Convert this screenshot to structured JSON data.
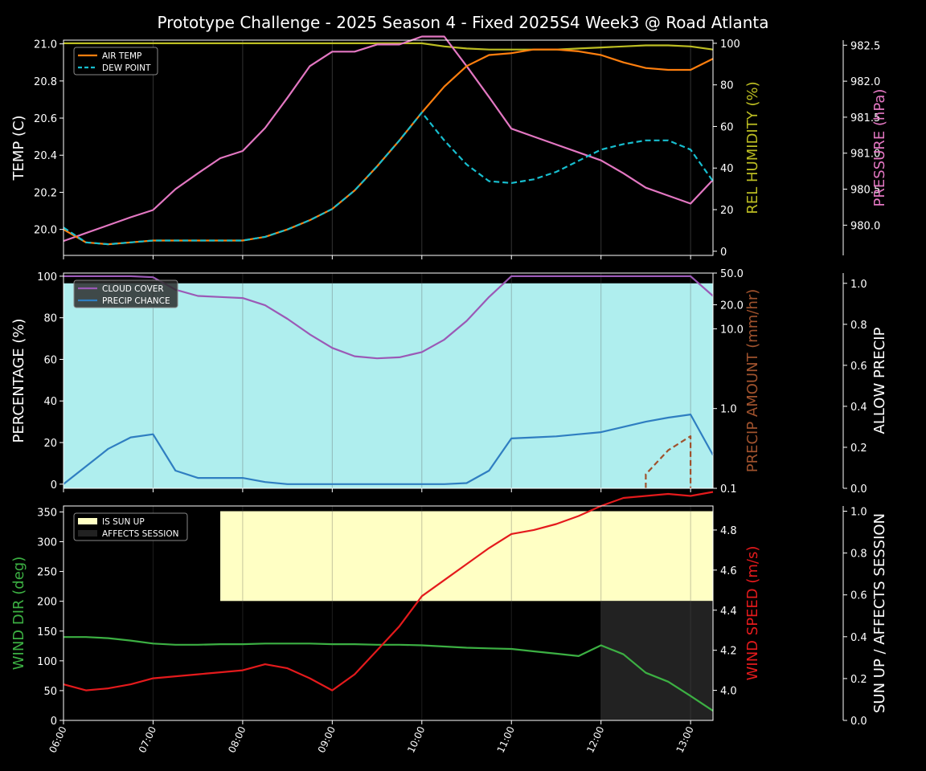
{
  "title": "Prototype Challenge  - 2025 Season 4 - Fixed 2025S4 Week3 @ Road Atlanta",
  "colors": {
    "air_temp": "#ff7f0e",
    "dew_point": "#17becf",
    "humidity": "#bcbd22",
    "pressure": "#e377c2",
    "cloud": "#9b59b6",
    "precip_chance": "#2f7ec1",
    "precip_amount": "#a0522d",
    "allow_precip_fill": "#afeeee",
    "wind_dir": "#3cb043",
    "wind_speed": "#e41a1c",
    "sun_up_fill": "#ffffc4",
    "affects_fill": "#222222"
  },
  "x_ticks": [
    "06:00",
    "07:00",
    "08:00",
    "09:00",
    "10:00",
    "11:00",
    "12:00",
    "13:00"
  ],
  "chart_data": [
    {
      "type": "line",
      "x_hours": [
        6.0,
        6.25,
        6.5,
        6.75,
        7.0,
        7.25,
        7.5,
        7.75,
        8.0,
        8.25,
        8.5,
        8.75,
        9.0,
        9.25,
        9.5,
        9.75,
        10.0,
        10.25,
        10.5,
        10.75,
        11.0,
        11.25,
        11.5,
        11.75,
        12.0,
        12.25,
        12.5,
        12.75,
        13.0,
        13.25
      ],
      "xlim": [
        6.0,
        13.25
      ],
      "ylabel": "TEMP (C)",
      "ylim": [
        19.86,
        21.02
      ],
      "yticks": [
        "20.0",
        "20.2",
        "20.4",
        "20.6",
        "20.8",
        "21.0"
      ],
      "y2label": "REL HUMIDITY (%)",
      "y2lim": [
        -2,
        101.5
      ],
      "y2ticks": [
        "0",
        "20",
        "40",
        "60",
        "80",
        "100"
      ],
      "y3label": "PRESSURE (hPa)",
      "y3lim": [
        979.58,
        982.57
      ],
      "y3ticks": [
        "980.0",
        "980.5",
        "981.0",
        "981.5",
        "982.0",
        "982.5"
      ],
      "legend": [
        "AIR TEMP",
        "DEW POINT"
      ],
      "series": [
        {
          "name": "AIR TEMP",
          "axis": "left",
          "values": [
            20.0,
            19.93,
            19.92,
            19.93,
            19.94,
            19.94,
            19.94,
            19.94,
            19.94,
            19.96,
            20.0,
            20.05,
            20.11,
            20.21,
            20.34,
            20.48,
            20.63,
            20.77,
            20.88,
            20.94,
            20.95,
            20.97,
            20.97,
            20.96,
            20.94,
            20.9,
            20.87,
            20.86,
            20.86,
            20.92
          ]
        },
        {
          "name": "DEW POINT",
          "axis": "left",
          "values": [
            20.01,
            19.93,
            19.92,
            19.93,
            19.94,
            19.94,
            19.94,
            19.94,
            19.94,
            19.96,
            20.0,
            20.05,
            20.11,
            20.21,
            20.34,
            20.48,
            20.63,
            20.48,
            20.35,
            20.26,
            20.25,
            20.27,
            20.31,
            20.37,
            20.43,
            20.46,
            20.48,
            20.48,
            20.43,
            20.26
          ]
        },
        {
          "name": "REL HUMIDITY",
          "axis": "right",
          "values": [
            100,
            100,
            100,
            100,
            100,
            100,
            100,
            100,
            100,
            100,
            100,
            100,
            100,
            100,
            100,
            100,
            100,
            98.5,
            97.5,
            97,
            97,
            97,
            97,
            97.5,
            98,
            98.5,
            99,
            99,
            98.5,
            97
          ]
        },
        {
          "name": "PRESSURE",
          "axis": "far-right",
          "values": [
            979.78,
            979.89,
            980.0,
            980.11,
            980.21,
            980.5,
            980.72,
            980.93,
            981.03,
            981.35,
            981.77,
            982.21,
            982.41,
            982.41,
            982.51,
            982.51,
            982.62,
            982.62,
            982.21,
            981.78,
            981.34,
            981.23,
            981.12,
            981.01,
            980.9,
            980.72,
            980.52,
            980.41,
            980.3,
            980.63
          ]
        }
      ]
    },
    {
      "type": "line",
      "x_hours": [
        6.0,
        6.25,
        6.5,
        6.75,
        7.0,
        7.25,
        7.5,
        7.75,
        8.0,
        8.25,
        8.5,
        8.75,
        9.0,
        9.25,
        9.5,
        9.75,
        10.0,
        10.25,
        10.5,
        10.75,
        11.0,
        11.25,
        11.5,
        11.75,
        12.0,
        12.25,
        12.5,
        12.75,
        13.0,
        13.25
      ],
      "xlim": [
        6.0,
        13.25
      ],
      "ylabel": "PERCENTAGE (%)",
      "ylim": [
        -2,
        101.5
      ],
      "yticks": [
        "0",
        "20",
        "40",
        "60",
        "80",
        "100"
      ],
      "y2label": "PRECIP AMOUNT (mm/hr)",
      "y2scale": "log",
      "y2lim": [
        0.1,
        50
      ],
      "y2ticks": [
        "0.1",
        "1.0",
        "10.0",
        "20.0",
        "50.0"
      ],
      "y3label": "ALLOW PRECIP",
      "y3lim": [
        0,
        1.05
      ],
      "y3ticks": [
        "0.0",
        "0.2",
        "0.4",
        "0.6",
        "0.8",
        "1.0"
      ],
      "legend": [
        "CLOUD COVER",
        "PRECIP CHANCE"
      ],
      "series": [
        {
          "name": "CLOUD COVER",
          "axis": "left",
          "values": [
            100,
            100,
            100,
            100,
            99.5,
            93.5,
            90.5,
            90,
            89.5,
            86,
            79.5,
            72,
            65.5,
            61.5,
            60.5,
            61,
            63.5,
            69.5,
            78.5,
            90,
            100,
            100,
            100,
            100,
            100,
            100,
            100,
            100,
            100,
            90.5
          ]
        },
        {
          "name": "PRECIP CHANCE",
          "axis": "left",
          "values": [
            0,
            8.5,
            17,
            22.5,
            24,
            6.5,
            3,
            3,
            3,
            1,
            0,
            0,
            0,
            0,
            0,
            0,
            0,
            0,
            0.5,
            6.5,
            22,
            22.5,
            23,
            24,
            25,
            27.5,
            30,
            32,
            33.5,
            14
          ]
        },
        {
          "name": "PRECIP AMOUNT",
          "axis": "right",
          "x_hours": [
            12.5,
            12.5,
            12.75,
            13.0,
            13.0
          ],
          "values": [
            0.1,
            0.15,
            0.3,
            0.45,
            0.1
          ]
        },
        {
          "name": "ALLOW PRECIP",
          "axis": "far-right",
          "x_hours": [
            6.0,
            13.25
          ],
          "values": [
            1,
            1
          ]
        }
      ]
    },
    {
      "type": "line",
      "x_hours": [
        6.0,
        6.25,
        6.5,
        6.75,
        7.0,
        7.25,
        7.5,
        7.75,
        8.0,
        8.25,
        8.5,
        8.75,
        9.0,
        9.25,
        9.5,
        9.75,
        10.0,
        10.25,
        10.5,
        10.75,
        11.0,
        11.25,
        11.5,
        11.75,
        12.0,
        12.25,
        12.5,
        12.75,
        13.0,
        13.25
      ],
      "xlim": [
        6.0,
        13.25
      ],
      "ylabel": "WIND DIR (deg)",
      "ylim": [
        0,
        360
      ],
      "yticks": [
        "0",
        "50",
        "100",
        "150",
        "200",
        "250",
        "300",
        "350"
      ],
      "y2label": "WIND SPEED (m/s)",
      "y2lim": [
        3.85,
        4.92
      ],
      "y2ticks": [
        "4.0",
        "4.2",
        "4.4",
        "4.6",
        "4.8"
      ],
      "y3label": "SUN UP / AFFECTS SESSION",
      "y3lim": [
        0,
        1.025
      ],
      "y3ticks": [
        "0.0",
        "0.2",
        "0.4",
        "0.6",
        "0.8",
        "1.0"
      ],
      "legend": [
        "IS SUN UP",
        "AFFECTS SESSION"
      ],
      "series": [
        {
          "name": "WIND DIR",
          "axis": "left",
          "values": [
            140,
            140,
            138,
            134,
            129,
            127,
            127,
            128,
            128,
            129,
            129,
            129,
            128,
            128,
            127,
            127,
            126,
            124,
            122,
            121,
            120,
            116,
            112,
            108,
            126,
            111,
            80,
            65,
            41,
            16
          ]
        },
        {
          "name": "WIND SPEED",
          "axis": "right",
          "values": [
            4.03,
            4.0,
            4.01,
            4.03,
            4.06,
            4.07,
            4.08,
            4.09,
            4.1,
            4.13,
            4.11,
            4.06,
            4.0,
            4.08,
            4.2,
            4.32,
            4.47,
            4.55,
            4.63,
            4.71,
            4.78,
            4.8,
            4.83,
            4.87,
            4.92,
            4.96,
            4.97,
            4.98,
            4.97,
            4.99
          ]
        },
        {
          "name": "IS SUN UP",
          "axis": "far-right",
          "x_hours": [
            7.75,
            13.25
          ],
          "values": [
            1,
            1
          ]
        },
        {
          "name": "AFFECTS SESSION",
          "axis": "far-right",
          "x_hours": [
            12.0,
            13.25
          ],
          "values": [
            1,
            1
          ]
        }
      ]
    }
  ]
}
